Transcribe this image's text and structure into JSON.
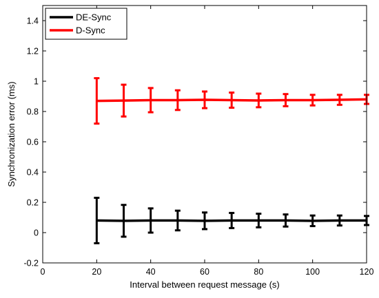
{
  "chart_data": {
    "type": "line",
    "title": "",
    "xlabel": "Interval between request message (s)",
    "ylabel": "Synchronization error (ms)",
    "xlim": [
      0,
      120
    ],
    "ylim": [
      -0.2,
      1.5
    ],
    "x_ticks": [
      0,
      20,
      40,
      60,
      80,
      100,
      120
    ],
    "y_ticks": [
      -0.2,
      0,
      0.2,
      0.4,
      0.6,
      0.8,
      1,
      1.2,
      1.4
    ],
    "x_tick_labels": [
      "0",
      "20",
      "40",
      "60",
      "80",
      "100",
      "120"
    ],
    "y_tick_labels": [
      "-0.2",
      "0",
      "0.2",
      "0.4",
      "0.6",
      "0.8",
      "1",
      "1.2",
      "1.4"
    ],
    "grid": false,
    "legend_position": "top-left",
    "x": [
      20,
      30,
      40,
      50,
      60,
      70,
      80,
      90,
      100,
      110,
      120
    ],
    "series": [
      {
        "name": "DE-Sync",
        "color": "#000000",
        "values": [
          0.08,
          0.078,
          0.08,
          0.08,
          0.078,
          0.08,
          0.08,
          0.08,
          0.078,
          0.08,
          0.08
        ],
        "errors": [
          0.15,
          0.105,
          0.08,
          0.065,
          0.055,
          0.05,
          0.045,
          0.04,
          0.035,
          0.033,
          0.03
        ]
      },
      {
        "name": "D-Sync",
        "color": "#ff0000",
        "values": [
          0.87,
          0.872,
          0.875,
          0.875,
          0.877,
          0.875,
          0.873,
          0.875,
          0.875,
          0.877,
          0.88
        ],
        "errors": [
          0.15,
          0.105,
          0.08,
          0.065,
          0.055,
          0.05,
          0.045,
          0.04,
          0.035,
          0.033,
          0.03
        ]
      }
    ]
  }
}
